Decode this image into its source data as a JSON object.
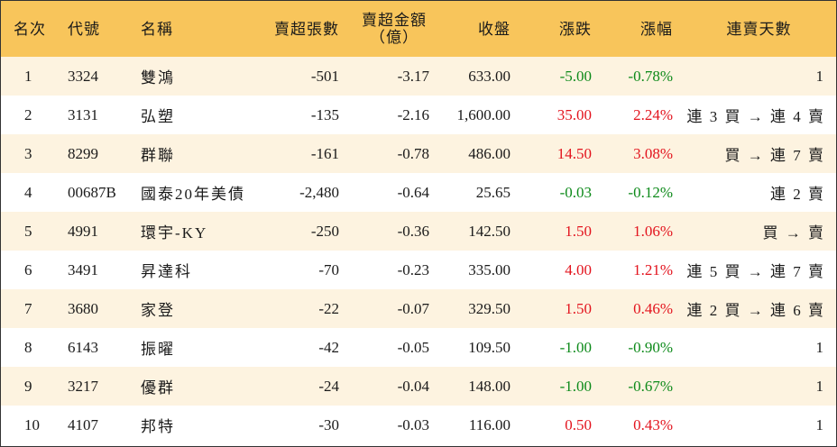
{
  "table": {
    "headers": {
      "rank": "名次",
      "code": "代號",
      "name": "名稱",
      "net_sell_lots": "賣超張數",
      "net_sell_amount_line1": "賣超金額",
      "net_sell_amount_line2": "（億）",
      "close": "收盤",
      "change": "漲跌",
      "change_pct": "漲幅",
      "streak": "連賣天數"
    },
    "rows": [
      {
        "rank": "1",
        "code": "3324",
        "name": "雙鴻",
        "net_sell_lots": "-501",
        "net_sell_amount": "-3.17",
        "close": "633.00",
        "change": "-5.00",
        "change_pct": "-0.78%",
        "streak": "1",
        "direction": "down"
      },
      {
        "rank": "2",
        "code": "3131",
        "name": "弘塑",
        "net_sell_lots": "-135",
        "net_sell_amount": "-2.16",
        "close": "1,600.00",
        "change": "35.00",
        "change_pct": "2.24%",
        "streak": "連 3 買 → 連 4 賣",
        "direction": "up"
      },
      {
        "rank": "3",
        "code": "8299",
        "name": "群聯",
        "net_sell_lots": "-161",
        "net_sell_amount": "-0.78",
        "close": "486.00",
        "change": "14.50",
        "change_pct": "3.08%",
        "streak": "買 → 連 7 賣",
        "direction": "up"
      },
      {
        "rank": "4",
        "code": "00687B",
        "name": "國泰20年美債",
        "net_sell_lots": "-2,480",
        "net_sell_amount": "-0.64",
        "close": "25.65",
        "change": "-0.03",
        "change_pct": "-0.12%",
        "streak": "連 2 賣",
        "direction": "down"
      },
      {
        "rank": "5",
        "code": "4991",
        "name": "環宇-KY",
        "net_sell_lots": "-250",
        "net_sell_amount": "-0.36",
        "close": "142.50",
        "change": "1.50",
        "change_pct": "1.06%",
        "streak": "買 → 賣",
        "direction": "up"
      },
      {
        "rank": "6",
        "code": "3491",
        "name": "昇達科",
        "net_sell_lots": "-70",
        "net_sell_amount": "-0.23",
        "close": "335.00",
        "change": "4.00",
        "change_pct": "1.21%",
        "streak": "連 5 買 → 連 7 賣",
        "direction": "up"
      },
      {
        "rank": "7",
        "code": "3680",
        "name": "家登",
        "net_sell_lots": "-22",
        "net_sell_amount": "-0.07",
        "close": "329.50",
        "change": "1.50",
        "change_pct": "0.46%",
        "streak": "連 2 買 → 連 6 賣",
        "direction": "up"
      },
      {
        "rank": "8",
        "code": "6143",
        "name": "振曜",
        "net_sell_lots": "-42",
        "net_sell_amount": "-0.05",
        "close": "109.50",
        "change": "-1.00",
        "change_pct": "-0.90%",
        "streak": "1",
        "direction": "down"
      },
      {
        "rank": "9",
        "code": "3217",
        "name": "優群",
        "net_sell_lots": "-24",
        "net_sell_amount": "-0.04",
        "close": "148.00",
        "change": "-1.00",
        "change_pct": "-0.67%",
        "streak": "1",
        "direction": "down"
      },
      {
        "rank": "10",
        "code": "4107",
        "name": "邦特",
        "net_sell_lots": "-30",
        "net_sell_amount": "-0.03",
        "close": "116.00",
        "change": "0.50",
        "change_pct": "0.43%",
        "streak": "1",
        "direction": "up"
      }
    ]
  },
  "colors": {
    "header_bg": "#f8c55b",
    "odd_row_bg": "#fdf3e0",
    "even_row_bg": "#ffffff",
    "up": "#e3141e",
    "down": "#0d8a1a"
  },
  "chart_data": {
    "type": "table",
    "columns": [
      "名次",
      "代號",
      "名稱",
      "賣超張數",
      "賣超金額（億）",
      "收盤",
      "漲跌",
      "漲幅",
      "連賣天數"
    ],
    "rows": [
      [
        "1",
        "3324",
        "雙鴻",
        -501,
        -3.17,
        633.0,
        -5.0,
        "-0.78%",
        "1"
      ],
      [
        "2",
        "3131",
        "弘塑",
        -135,
        -2.16,
        1600.0,
        35.0,
        "2.24%",
        "連 3 買 → 連 4 賣"
      ],
      [
        "3",
        "8299",
        "群聯",
        -161,
        -0.78,
        486.0,
        14.5,
        "3.08%",
        "買 → 連 7 賣"
      ],
      [
        "4",
        "00687B",
        "國泰20年美債",
        -2480,
        -0.64,
        25.65,
        -0.03,
        "-0.12%",
        "連 2 賣"
      ],
      [
        "5",
        "4991",
        "環宇-KY",
        -250,
        -0.36,
        142.5,
        1.5,
        "1.06%",
        "買 → 賣"
      ],
      [
        "6",
        "3491",
        "昇達科",
        -70,
        -0.23,
        335.0,
        4.0,
        "1.21%",
        "連 5 買 → 連 7 賣"
      ],
      [
        "7",
        "3680",
        "家登",
        -22,
        -0.07,
        329.5,
        1.5,
        "0.46%",
        "連 2 買 → 連 6 賣"
      ],
      [
        "8",
        "6143",
        "振曜",
        -42,
        -0.05,
        109.5,
        -1.0,
        "-0.90%",
        "1"
      ],
      [
        "9",
        "3217",
        "優群",
        -24,
        -0.04,
        148.0,
        -1.0,
        "-0.67%",
        "1"
      ],
      [
        "10",
        "4107",
        "邦特",
        -30,
        -0.03,
        116.0,
        0.5,
        "0.43%",
        "1"
      ]
    ]
  }
}
